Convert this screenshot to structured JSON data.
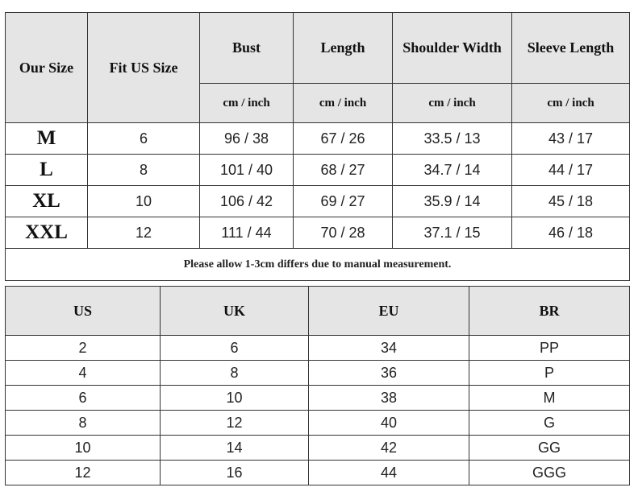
{
  "size_chart": {
    "headers": {
      "our_size": "Our Size",
      "fit_us": "Fit US Size",
      "bust": "Bust",
      "length": "Length",
      "shoulder": "Shoulder Width",
      "sleeve": "Sleeve Length",
      "unit": "cm / inch"
    },
    "rows": [
      {
        "size": "M",
        "us": "6",
        "bust": "96 / 38",
        "length": "67 / 26",
        "shoulder": "33.5 / 13",
        "sleeve": "43 / 17"
      },
      {
        "size": "L",
        "us": "8",
        "bust": "101 / 40",
        "length": "68 / 27",
        "shoulder": "34.7 / 14",
        "sleeve": "44 / 17"
      },
      {
        "size": "XL",
        "us": "10",
        "bust": "106 / 42",
        "length": "69 / 27",
        "shoulder": "35.9 / 14",
        "sleeve": "45 / 18"
      },
      {
        "size": "XXL",
        "us": "12",
        "bust": "111 / 44",
        "length": "70 / 28",
        "shoulder": "37.1 / 15",
        "sleeve": "46 / 18"
      }
    ],
    "note": "Please allow 1-3cm differs due to manual measurement."
  },
  "conversion": {
    "headers": [
      "US",
      "UK",
      "EU",
      "BR"
    ],
    "rows": [
      [
        "2",
        "6",
        "34",
        "PP"
      ],
      [
        "4",
        "8",
        "36",
        "P"
      ],
      [
        "6",
        "10",
        "38",
        "M"
      ],
      [
        "8",
        "12",
        "40",
        "G"
      ],
      [
        "10",
        "14",
        "42",
        "GG"
      ],
      [
        "12",
        "16",
        "44",
        "GGG"
      ]
    ]
  }
}
